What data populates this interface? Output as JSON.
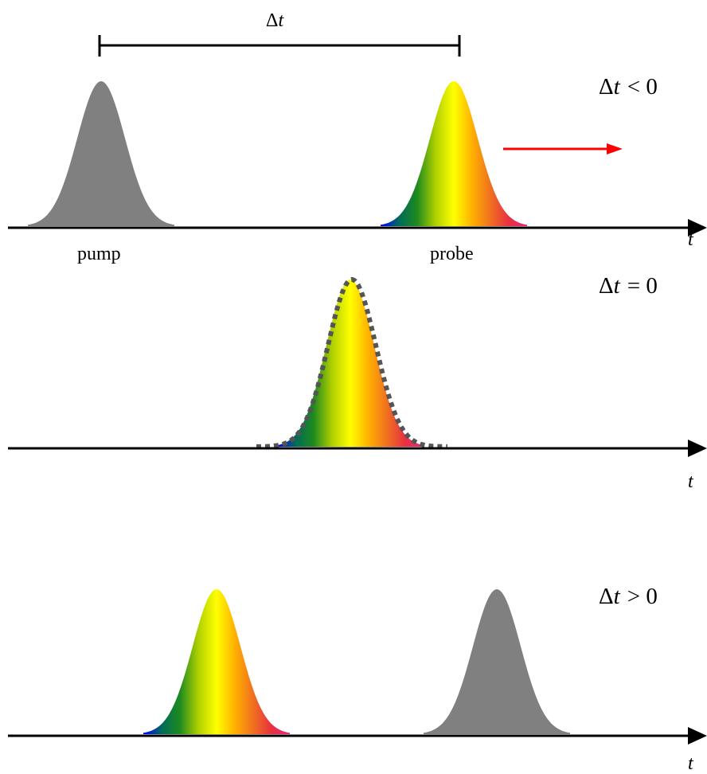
{
  "delay_bar_label_symbol": "Δ",
  "delay_bar_label_var": "t",
  "pulse_labels": {
    "pump": "pump",
    "probe": "probe"
  },
  "axis_label": "t",
  "panels": [
    {
      "id": "negative",
      "symbol": "Δ",
      "var": "t",
      "relation": "< 0"
    },
    {
      "id": "zero",
      "symbol": "Δ",
      "var": "t",
      "relation": "= 0"
    },
    {
      "id": "positive",
      "symbol": "Δ",
      "var": "t",
      "relation": "> 0"
    }
  ],
  "colors": {
    "pump": "#808080",
    "arrow": "#ff0000",
    "axis": "#000000",
    "dotted_outline": "#555555",
    "spectrum": [
      "#0000ff",
      "#006a5a",
      "#1e8a1e",
      "#b0d000",
      "#ffff00",
      "#ffb000",
      "#f07020",
      "#e83040",
      "#e8287a"
    ]
  }
}
